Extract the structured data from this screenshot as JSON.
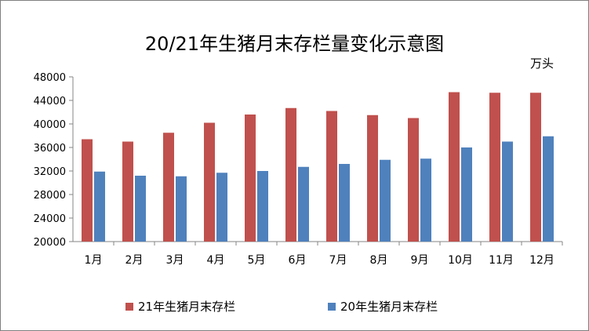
{
  "chart_data": {
    "type": "bar",
    "title": "20/21年生猪月末存栏量变化示意图",
    "unit": "万头",
    "categories": [
      "1月",
      "2月",
      "3月",
      "4月",
      "5月",
      "6月",
      "7月",
      "8月",
      "9月",
      "10月",
      "11月",
      "12月"
    ],
    "series": [
      {
        "name": "21年生猪月末存栏",
        "color": "#c0504d",
        "values": [
          37400,
          37000,
          38500,
          40200,
          41600,
          42700,
          42200,
          41500,
          41000,
          45400,
          45300,
          45300
        ]
      },
      {
        "name": "20年生猪月末存栏",
        "color": "#4f81bd",
        "values": [
          31900,
          31200,
          31100,
          31700,
          32000,
          32700,
          33200,
          33900,
          34100,
          36000,
          37000,
          37900
        ]
      }
    ],
    "ylim": [
      20000,
      48000
    ],
    "yticks": [
      20000,
      24000,
      28000,
      32000,
      36000,
      40000,
      44000,
      48000
    ],
    "grid": false,
    "legend": "bottom"
  }
}
